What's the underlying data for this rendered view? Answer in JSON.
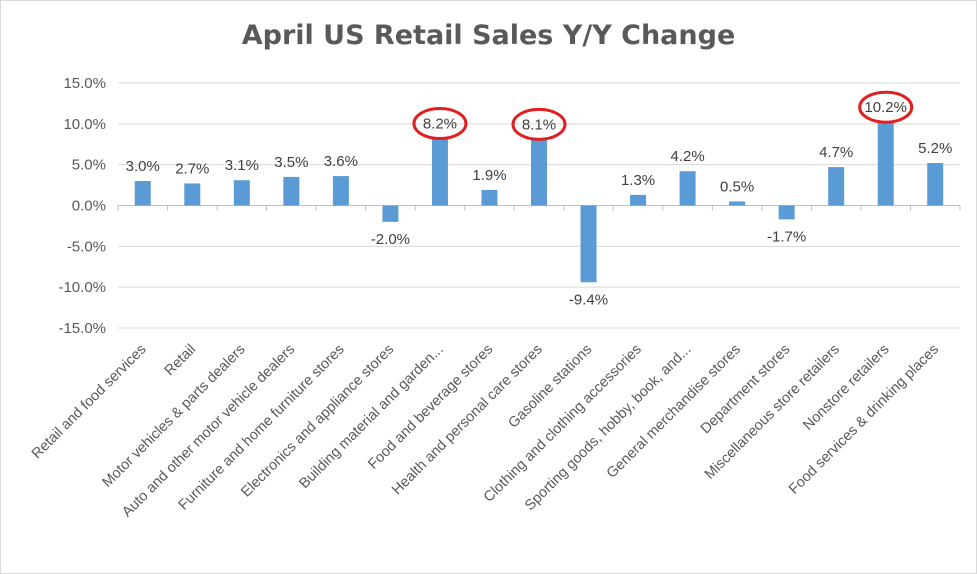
{
  "chart_data": {
    "type": "bar",
    "title": "April US Retail Sales Y/Y Change",
    "categories": [
      "Retail and food services",
      "Retail",
      "Motor vehicles & parts dealers",
      "Auto and other motor vehicle dealers",
      "Furniture and home furniture stores",
      "Electronics and appliance stores",
      "Building material and garden...",
      "Food and beverage stores",
      "Health and personal care stores",
      "Gasoline stations",
      "Clothing and clothing accessories",
      "Sporting goods, hobby, book, and...",
      "General merchandise stores",
      "Department stores",
      "Miscellaneous store retailers",
      "Nonstore retailers",
      "Food services & drinking places"
    ],
    "values": [
      3.0,
      2.7,
      3.1,
      3.5,
      3.6,
      -2.0,
      8.2,
      1.9,
      8.1,
      -9.4,
      1.3,
      4.2,
      0.5,
      -1.7,
      4.7,
      10.2,
      5.2
    ],
    "data_labels": [
      "3.0%",
      "2.7%",
      "3.1%",
      "3.5%",
      "3.6%",
      "-2.0%",
      "8.2%",
      "1.9%",
      "8.1%",
      "-9.4%",
      "1.3%",
      "4.2%",
      "0.5%",
      "-1.7%",
      "4.7%",
      "10.2%",
      "5.2%"
    ],
    "highlighted": [
      "Building material and garden...",
      "Health and personal care stores",
      "Nonstore retailers"
    ],
    "yticks": [
      15,
      10,
      5,
      0,
      -5,
      -10,
      -15
    ],
    "ytick_labels": [
      "15.0%",
      "10.0%",
      "5.0%",
      "0.0%",
      "-5.0%",
      "-10.0%",
      "-15.0%"
    ],
    "ylim": [
      -15,
      15
    ],
    "xlabel": "",
    "ylabel": "",
    "grid": true,
    "legend": "none",
    "bar_color": "#5b9bd5",
    "highlight_color": "#e02020",
    "grid_color": "#d9d9d9"
  }
}
